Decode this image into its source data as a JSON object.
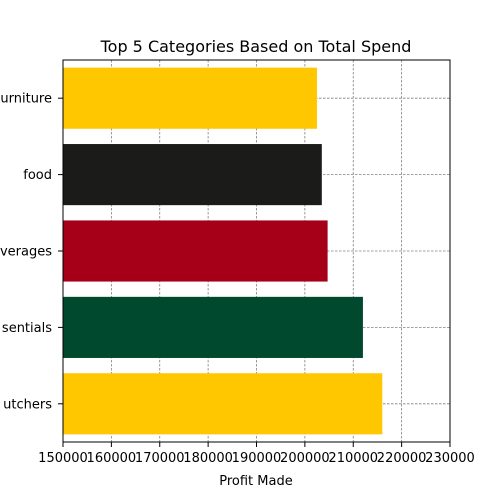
{
  "chart_data": {
    "type": "bar",
    "orientation": "horizontal",
    "title": "Top 5 Categories Based on Total Spend",
    "xlabel": "Profit Made",
    "ylabel": "",
    "categories": [
      "furniture",
      "food",
      "beverages",
      "essentials",
      "butchers"
    ],
    "category_tick_labels": [
      "urniture",
      "food",
      "verages",
      "sentials",
      "utchers"
    ],
    "values": [
      202500,
      203500,
      204700,
      212000,
      216000
    ],
    "colors": [
      "#FFC700",
      "#1B1B19",
      "#A50018",
      "#00482E",
      "#FFC700"
    ],
    "xlim": [
      150000,
      230000
    ],
    "x_ticks": [
      150000,
      160000,
      170000,
      180000,
      190000,
      200000,
      210000,
      220000,
      230000
    ],
    "x_tick_labels": [
      "150000",
      "160000",
      "170000",
      "180000",
      "190000",
      "200000",
      "210000",
      "220000",
      "230000"
    ],
    "grid": true,
    "grid_style": "dashed",
    "legend": false
  }
}
